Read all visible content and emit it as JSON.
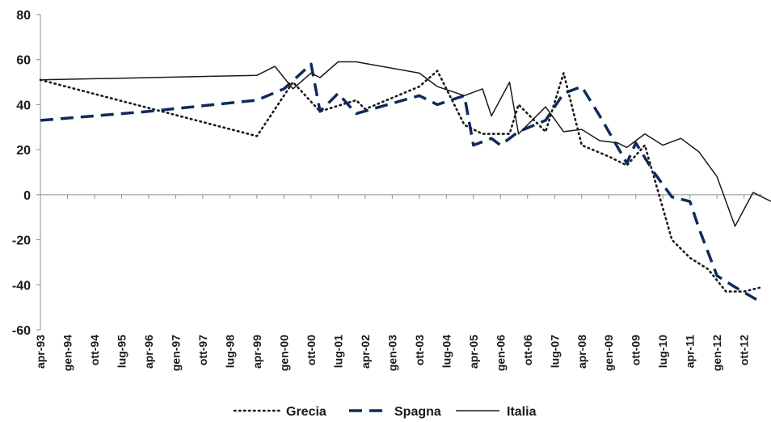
{
  "chart_data": {
    "type": "line",
    "title": "",
    "xlabel": "",
    "ylabel": "",
    "ylim": [
      -60,
      80
    ],
    "yticks": [
      80,
      60,
      40,
      20,
      0,
      -20,
      -40,
      -60
    ],
    "ytick_labels": [
      "80",
      "60",
      "40",
      "20",
      "0",
      "-20",
      "-40",
      "-60"
    ],
    "xtick_labels": [
      "apr-93",
      "gen-94",
      "ott-94",
      "lug-95",
      "apr-96",
      "gen-97",
      "ott-97",
      "lug-98",
      "apr-99",
      "gen-00",
      "ott-00",
      "lug-01",
      "apr-02",
      "gen-03",
      "ott-03",
      "lug-04",
      "apr-05",
      "gen-06",
      "ott-06",
      "lug-07",
      "apr-08",
      "gen-09",
      "ott-09",
      "lug-10",
      "apr-11",
      "gen-12",
      "ott-12"
    ],
    "legend_position": "bottom",
    "grid": false,
    "series": [
      {
        "name": "Grecia",
        "style": "dotted",
        "color": "#1a1a1a",
        "points": [
          [
            "apr-93",
            51
          ],
          [
            "apr-99",
            26
          ],
          [
            "apr-00",
            50
          ],
          [
            "gen-01",
            37
          ],
          [
            "gen-02",
            42
          ],
          [
            "apr-02",
            38
          ],
          [
            "ott-03",
            48
          ],
          [
            "apr-04",
            55
          ],
          [
            "gen-05",
            31
          ],
          [
            "lug-05",
            27
          ],
          [
            "apr-06",
            27
          ],
          [
            "lug-06",
            40
          ],
          [
            "apr-07",
            28
          ],
          [
            "ott-07",
            54
          ],
          [
            "apr-08",
            22
          ],
          [
            "gen-09",
            17
          ],
          [
            "lug-09",
            13
          ],
          [
            "gen-10",
            22
          ],
          [
            "ott-10",
            -20
          ],
          [
            "apr-11",
            -28
          ],
          [
            "ott-11",
            -33
          ],
          [
            "apr-12",
            -43
          ],
          [
            "ott-12",
            -43
          ],
          [
            "apr-13",
            -41
          ]
        ]
      },
      {
        "name": "Spagna",
        "style": "dashed",
        "color": "#0f2a5c",
        "points": [
          [
            "apr-93",
            33
          ],
          [
            "apr-96",
            37
          ],
          [
            "apr-99",
            42
          ],
          [
            "gen-00",
            47
          ],
          [
            "ott-00",
            58
          ],
          [
            "gen-01",
            37
          ],
          [
            "lug-01",
            45
          ],
          [
            "gen-02",
            36
          ],
          [
            "ott-03",
            44
          ],
          [
            "apr-04",
            40
          ],
          [
            "gen-05",
            44
          ],
          [
            "apr-05",
            22
          ],
          [
            "ott-05",
            25
          ],
          [
            "gen-06",
            22
          ],
          [
            "lug-06",
            28
          ],
          [
            "apr-07",
            33
          ],
          [
            "ott-07",
            45
          ],
          [
            "apr-08",
            48
          ],
          [
            "ott-08",
            35
          ],
          [
            "lug-09",
            14
          ],
          [
            "ott-09",
            23
          ],
          [
            "apr-10",
            10
          ],
          [
            "ott-10",
            -1
          ],
          [
            "apr-11",
            -3
          ],
          [
            "lug-11",
            -15
          ],
          [
            "gen-12",
            -36
          ],
          [
            "lug-12",
            -41
          ],
          [
            "apr-13",
            -48
          ]
        ]
      },
      {
        "name": "Italia",
        "style": "solid",
        "color": "#1a1a1a",
        "points": [
          [
            "apr-93",
            51
          ],
          [
            "apr-99",
            53
          ],
          [
            "ott-99",
            57
          ],
          [
            "apr-00",
            47
          ],
          [
            "ott-00",
            54
          ],
          [
            "gen-01",
            52
          ],
          [
            "lug-01",
            59
          ],
          [
            "gen-02",
            59
          ],
          [
            "ott-03",
            54
          ],
          [
            "apr-04",
            48
          ],
          [
            "gen-05",
            44
          ],
          [
            "lug-05",
            47
          ],
          [
            "ott-05",
            35
          ],
          [
            "apr-06",
            50
          ],
          [
            "lug-06",
            27
          ],
          [
            "apr-07",
            39
          ],
          [
            "ott-07",
            28
          ],
          [
            "apr-08",
            29
          ],
          [
            "ott-08",
            24
          ],
          [
            "apr-09",
            23
          ],
          [
            "lug-09",
            21
          ],
          [
            "gen-10",
            27
          ],
          [
            "lug-10",
            22
          ],
          [
            "gen-11",
            25
          ],
          [
            "lug-11",
            19
          ],
          [
            "gen-12",
            8
          ],
          [
            "lug-12",
            -14
          ],
          [
            "gen-13",
            1
          ],
          [
            "lug-13",
            -3
          ]
        ]
      }
    ]
  }
}
